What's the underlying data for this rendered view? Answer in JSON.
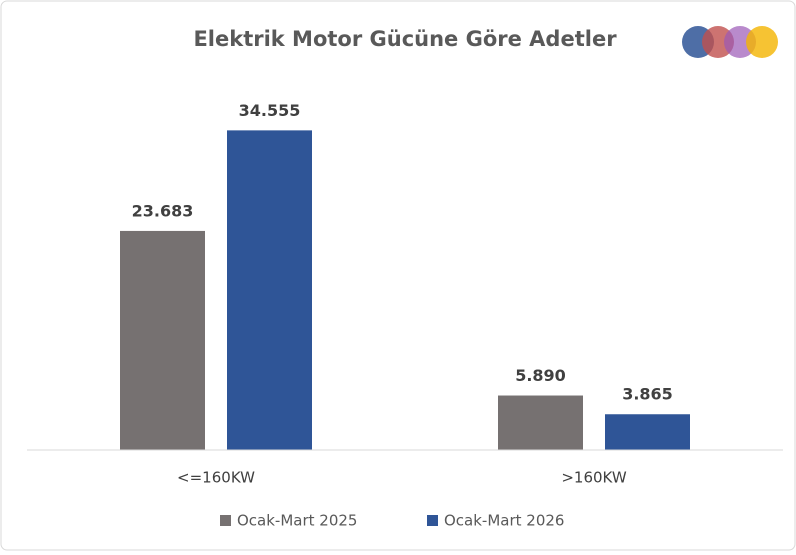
{
  "chart_data": {
    "type": "bar",
    "title": "Elektrik Motor Gücüne Göre Adetler",
    "categories": [
      "<=160KW",
      ">160KW"
    ],
    "series": [
      {
        "name": "Ocak-Mart 2025",
        "color": "#767171",
        "values": [
          23683,
          5890
        ],
        "value_labels": [
          "23.683",
          "5.890"
        ]
      },
      {
        "name": "Ocak-Mart 2026",
        "color": "#2f5597",
        "values": [
          34555,
          3865
        ],
        "value_labels": [
          "34.555",
          "3.865"
        ]
      }
    ],
    "ylim": [
      0,
      40000
    ],
    "legend": "bottom"
  }
}
